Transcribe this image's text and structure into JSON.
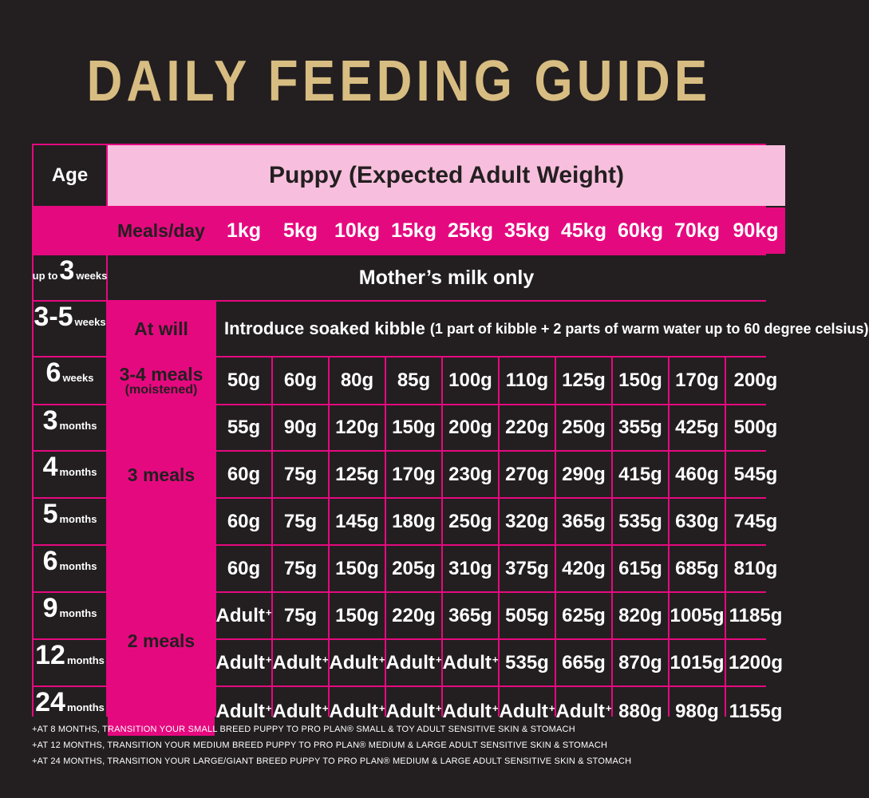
{
  "title": "DAILY FEEDING GUIDE",
  "header": {
    "age": "Age",
    "puppy": "Puppy (Expected Adult Weight)",
    "meals_per_day": "Meals/day",
    "weights": [
      "1kg",
      "5kg",
      "10kg",
      "15kg",
      "25kg",
      "35kg",
      "45kg",
      "60kg",
      "70kg",
      "90kg"
    ]
  },
  "rows": [
    {
      "age_prefix": "up to",
      "age_num": "3",
      "age_unit": "weeks",
      "note": "Mother’s milk only"
    },
    {
      "age_num": "3-5",
      "age_unit": "weeks",
      "meals": "At will",
      "note": "Introduce soaked kibble",
      "note_detail": "(1 part of kibble + 2 parts of warm water up to 60 degree celsius)"
    },
    {
      "age_num": "6",
      "age_unit": "weeks",
      "meals": "3-4 meals",
      "meals_sub": "(moistened)",
      "values": [
        "50g",
        "60g",
        "80g",
        "85g",
        "100g",
        "110g",
        "125g",
        "150g",
        "170g",
        "200g"
      ]
    },
    {
      "age_num": "3",
      "age_unit": "months",
      "values": [
        "55g",
        "90g",
        "120g",
        "150g",
        "200g",
        "220g",
        "250g",
        "355g",
        "425g",
        "500g"
      ]
    },
    {
      "age_num": "4",
      "age_unit": "months",
      "values": [
        "60g",
        "75g",
        "125g",
        "170g",
        "230g",
        "270g",
        "290g",
        "415g",
        "460g",
        "545g"
      ]
    },
    {
      "age_num": "5",
      "age_unit": "months",
      "values": [
        "60g",
        "75g",
        "145g",
        "180g",
        "250g",
        "320g",
        "365g",
        "535g",
        "630g",
        "745g"
      ]
    },
    {
      "age_num": "6",
      "age_unit": "months",
      "values": [
        "60g",
        "75g",
        "150g",
        "205g",
        "310g",
        "375g",
        "420g",
        "615g",
        "685g",
        "810g"
      ]
    },
    {
      "age_num": "9",
      "age_unit": "months",
      "values": [
        "Adult",
        "75g",
        "150g",
        "220g",
        "365g",
        "505g",
        "625g",
        "820g",
        "1005g",
        "1185g"
      ]
    },
    {
      "age_num": "12",
      "age_unit": "months",
      "values": [
        "Adult",
        "Adult",
        "Adult",
        "Adult",
        "Adult",
        "535g",
        "665g",
        "870g",
        "1015g",
        "1200g"
      ]
    },
    {
      "age_num": "24",
      "age_unit": "months",
      "values": [
        "Adult",
        "Adult",
        "Adult",
        "Adult",
        "Adult",
        "Adult",
        "Adult",
        "880g",
        "980g",
        "1155g"
      ]
    }
  ],
  "meal_groups": {
    "three": "3 meals",
    "two": "2 meals"
  },
  "adult_marker": "+",
  "footnotes": [
    "+AT 8 MONTHS, TRANSITION YOUR SMALL BREED PUPPY TO PRO PLAN® SMALL & TOY ADULT SENSITIVE SKIN & STOMACH",
    "+AT 12 MONTHS, TRANSITION YOUR MEDIUM BREED PUPPY TO PRO PLAN® MEDIUM & LARGE ADULT SENSITIVE SKIN & STOMACH",
    "+AT 24 MONTHS, TRANSITION YOUR LARGE/GIANT BREED PUPPY TO PRO PLAN® MEDIUM & LARGE ADULT SENSITIVE SKIN & STOMACH"
  ],
  "colors": {
    "background": "#231f20",
    "accent": "#e5097f",
    "light_pink": "#f7bfdd",
    "gold": "#d8bd82"
  }
}
